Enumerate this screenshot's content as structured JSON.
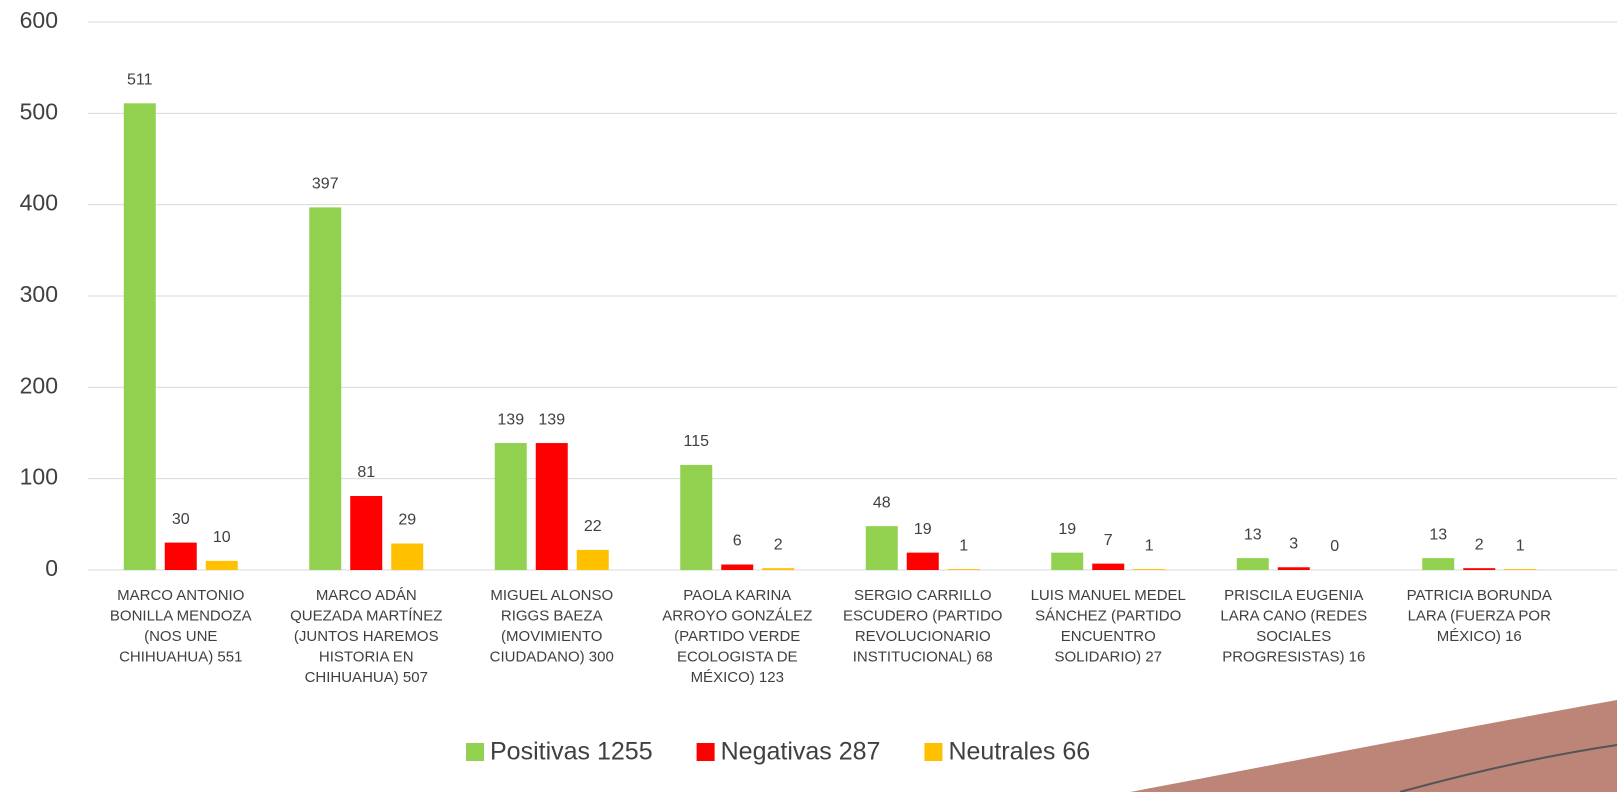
{
  "chart_data": {
    "type": "bar",
    "categories": [
      "MARCO ANTONIO BONILLA MENDOZA (NOS UNE CHIHUAHUA) 551",
      "MARCO ADÁN QUEZADA MARTÍNEZ (JUNTOS HAREMOS HISTORIA EN CHIHUAHUA) 507",
      "MIGUEL ALONSO RIGGS BAEZA (MOVIMIENTO CIUDADANO) 300",
      "PAOLA KARINA ARROYO GONZÁLEZ (PARTIDO VERDE ECOLOGISTA DE MÉXICO) 123",
      "SERGIO CARRILLO ESCUDERO (PARTIDO REVOLUCIONARIO INSTITUCIONAL) 68",
      "LUIS MANUEL MEDEL SÁNCHEZ (PARTIDO ENCUENTRO SOLIDARIO) 27",
      "PRISCILA EUGENIA LARA CANO (REDES SOCIALES PROGRESISTAS) 16",
      "PATRICIA BORUNDA LARA (FUERZA POR MÉXICO) 16"
    ],
    "series": [
      {
        "name": "Positivas 1255",
        "color": "#92d050",
        "values": [
          511,
          397,
          139,
          115,
          48,
          19,
          13,
          13
        ]
      },
      {
        "name": "Negativas 287",
        "color": "#ff0000",
        "values": [
          30,
          81,
          139,
          6,
          19,
          7,
          3,
          2
        ]
      },
      {
        "name": "Neutrales 66",
        "color": "#ffc000",
        "values": [
          10,
          29,
          22,
          2,
          1,
          1,
          0,
          1
        ]
      }
    ],
    "ylim": [
      0,
      600
    ],
    "yticks": [
      0,
      100,
      200,
      300,
      400,
      500,
      600
    ],
    "grid": true,
    "legend": "bottom"
  }
}
